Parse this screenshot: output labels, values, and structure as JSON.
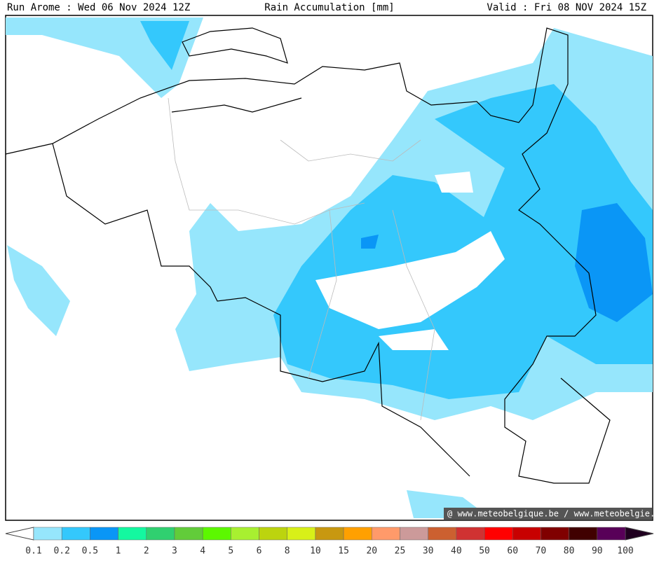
{
  "header": {
    "left": "Run Arome : Wed 06 Nov 2024 12Z",
    "center": "Rain Accumulation [mm]",
    "right": "Valid : Fri 08 NOV 2024 15Z"
  },
  "credit": "@ www.meteobelgique.be / www.meteobelgie.be",
  "colorbar": {
    "ticks": [
      0.1,
      0.2,
      0.5,
      1,
      2,
      3,
      4,
      5,
      6,
      8,
      10,
      15,
      20,
      25,
      30,
      40,
      50,
      60,
      70,
      80,
      90,
      100
    ],
    "colors": [
      "#96e6fc",
      "#34c8fc",
      "#0a96f6",
      "#14f8a0",
      "#30d070",
      "#62cc3a",
      "#5cf800",
      "#a8f030",
      "#bcd40e",
      "#d8f018",
      "#c89810",
      "#ffa000",
      "#ff9a6a",
      "#cc9a9a",
      "#cc6030",
      "#d03232",
      "#ff0000",
      "#c80000",
      "#800000",
      "#400000",
      "#580058"
    ],
    "under_color": "#ffffff",
    "over_color": "#200020"
  }
}
